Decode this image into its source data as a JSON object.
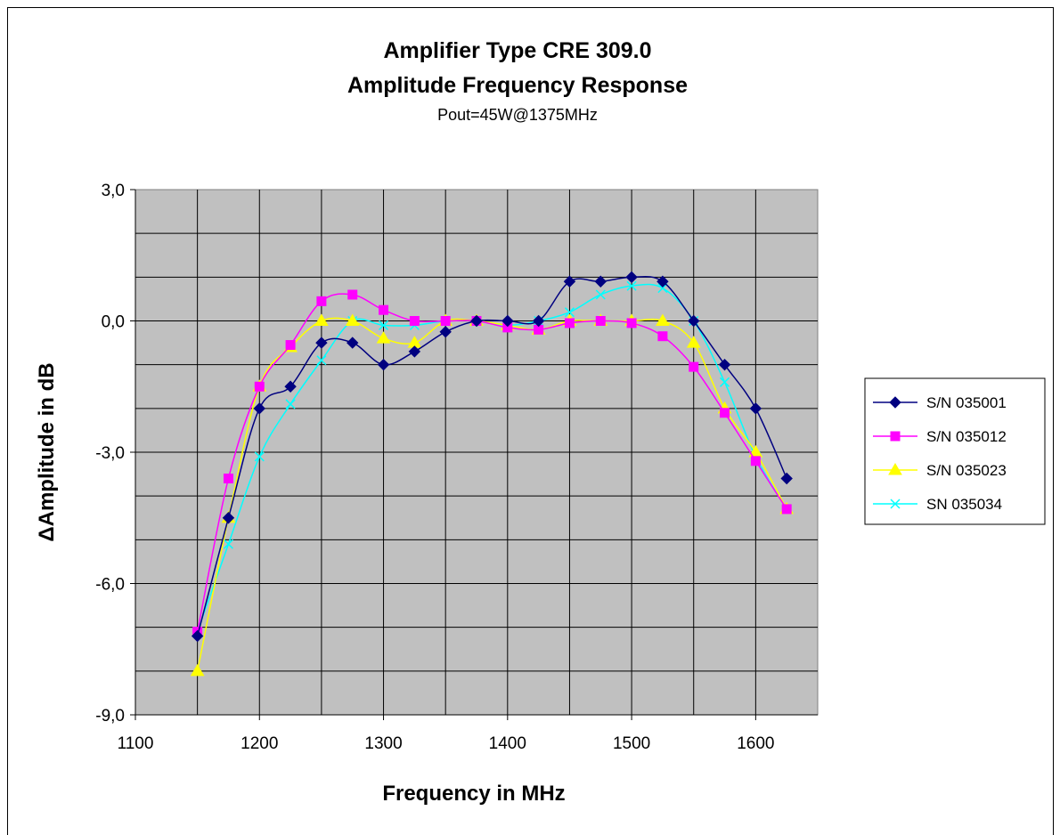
{
  "chart_data": {
    "type": "line",
    "title": "Amplifier Type CRE 309.0",
    "subtitle": "Amplitude Frequency Response",
    "subtitle2": "Pout=45W@1375MHz",
    "xlabel": "Frequency in MHz",
    "ylabel": "ΔAmplitude in dB",
    "xlim": [
      1100,
      1650
    ],
    "ylim": [
      -9,
      3
    ],
    "x_ticks": [
      "1100",
      "1200",
      "1300",
      "1400",
      "1500",
      "1600"
    ],
    "x_tick_values": [
      1100,
      1200,
      1300,
      1400,
      1500,
      1600
    ],
    "y_ticks": [
      "3,0",
      "0,0",
      "-3,0",
      "-6,0",
      "-9,0"
    ],
    "y_tick_values": [
      3,
      0,
      -3,
      -6,
      -9
    ],
    "grid": true,
    "plot_background": "#c0c0c0",
    "legend_position": "right",
    "x": [
      1150,
      1175,
      1200,
      1225,
      1250,
      1275,
      1300,
      1325,
      1350,
      1375,
      1400,
      1425,
      1450,
      1475,
      1500,
      1525,
      1550,
      1575,
      1600,
      1625
    ],
    "series": [
      {
        "name": "S/N 035001",
        "color": "#000080",
        "marker": "diamond",
        "values": [
          -7.2,
          -4.5,
          -2.0,
          -1.5,
          -0.5,
          -0.5,
          -1.0,
          -0.7,
          -0.25,
          0.0,
          0.0,
          0.0,
          0.9,
          0.9,
          1.0,
          0.9,
          0.0,
          -1.0,
          -2.0,
          -3.6
        ]
      },
      {
        "name": "S/N 035012",
        "color": "#ff00ff",
        "marker": "square",
        "values": [
          -7.1,
          -3.6,
          -1.5,
          -0.55,
          0.45,
          0.6,
          0.25,
          0.0,
          0.0,
          0.0,
          -0.15,
          -0.2,
          -0.05,
          0.0,
          -0.05,
          -0.35,
          -1.05,
          -2.1,
          -3.2,
          -4.3
        ]
      },
      {
        "name": "S/N 035023",
        "color": "#ffff00",
        "marker": "triangle",
        "values": [
          -8.0,
          -4.5,
          -1.5,
          -0.6,
          0.0,
          0.0,
          -0.4,
          -0.5,
          0.0,
          0.0,
          -0.1,
          -0.2,
          0.0,
          0.0,
          0.0,
          0.0,
          -0.5,
          -2.0,
          -3.0,
          -4.3
        ]
      },
      {
        "name": "SN 035034",
        "color": "#00ffff",
        "marker": "x",
        "values": [
          -7.1,
          -5.1,
          -3.1,
          -1.9,
          -0.9,
          0.0,
          -0.1,
          -0.1,
          0.0,
          0.0,
          -0.1,
          0.0,
          0.2,
          0.6,
          0.8,
          0.75,
          0.0,
          -1.4,
          -3.1,
          -4.3
        ]
      }
    ]
  }
}
